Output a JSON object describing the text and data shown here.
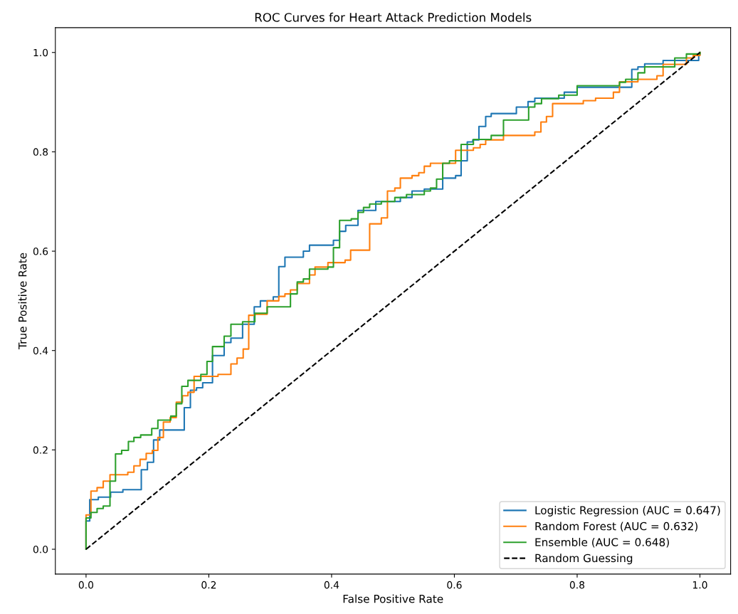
{
  "chart_data": {
    "type": "step",
    "title": "ROC Curves for Heart Attack Prediction Models",
    "xlabel": "False Positive Rate",
    "ylabel": "True Positive Rate",
    "xlim": [
      -0.05,
      1.05
    ],
    "ylim": [
      -0.05,
      1.05
    ],
    "xticks": [
      {
        "value": 0,
        "label": "0.0"
      },
      {
        "value": 0.2,
        "label": "0.2"
      },
      {
        "value": 0.4,
        "label": "0.4"
      },
      {
        "value": 0.6,
        "label": "0.6"
      },
      {
        "value": 0.8,
        "label": "0.8"
      },
      {
        "value": 1,
        "label": "1.0"
      }
    ],
    "yticks": [
      {
        "value": 0,
        "label": "0.0"
      },
      {
        "value": 0.2,
        "label": "0.2"
      },
      {
        "value": 0.4,
        "label": "0.4"
      },
      {
        "value": 0.6,
        "label": "0.6"
      },
      {
        "value": 0.8,
        "label": "0.8"
      },
      {
        "value": 1,
        "label": "1.0"
      }
    ],
    "grid": false,
    "legend": "bottom right",
    "marker": "none",
    "series": [
      {
        "name": "Logistic Regression (AUC = 0.647)",
        "color": "#1f77b4",
        "x": [
          0,
          0,
          0.006,
          0.02,
          0.04,
          0.06,
          0.09,
          0.1,
          0.11,
          0.12,
          0.16,
          0.17,
          0.18,
          0.19,
          0.206,
          0.225,
          0.236,
          0.255,
          0.274,
          0.284,
          0.305,
          0.314,
          0.324,
          0.354,
          0.364,
          0.403,
          0.413,
          0.423,
          0.443,
          0.472,
          0.512,
          0.531,
          0.551,
          0.581,
          0.602,
          0.611,
          0.621,
          0.63,
          0.64,
          0.651,
          0.66,
          0.701,
          0.72,
          0.731,
          0.779,
          0.8,
          0.889,
          0.899,
          0.91,
          0.94,
          0.998,
          1
        ],
        "values": [
          0,
          0.057,
          0.1,
          0.105,
          0.115,
          0.12,
          0.16,
          0.175,
          0.22,
          0.24,
          0.285,
          0.32,
          0.325,
          0.335,
          0.39,
          0.416,
          0.425,
          0.453,
          0.488,
          0.5,
          0.508,
          0.569,
          0.588,
          0.6,
          0.612,
          0.622,
          0.64,
          0.652,
          0.682,
          0.7,
          0.708,
          0.721,
          0.725,
          0.747,
          0.752,
          0.782,
          0.82,
          0.824,
          0.851,
          0.871,
          0.877,
          0.89,
          0.901,
          0.908,
          0.92,
          0.93,
          0.966,
          0.971,
          0.977,
          0.984,
          0.995,
          1
        ]
      },
      {
        "name": "Random Forest (AUC = 0.632)",
        "color": "#ff7f0e",
        "x": [
          0,
          0,
          0.008,
          0.018,
          0.028,
          0.039,
          0.068,
          0.078,
          0.088,
          0.098,
          0.108,
          0.117,
          0.126,
          0.137,
          0.147,
          0.157,
          0.166,
          0.176,
          0.215,
          0.236,
          0.246,
          0.256,
          0.265,
          0.275,
          0.295,
          0.314,
          0.324,
          0.333,
          0.344,
          0.364,
          0.373,
          0.394,
          0.422,
          0.431,
          0.462,
          0.481,
          0.491,
          0.503,
          0.512,
          0.531,
          0.542,
          0.551,
          0.561,
          0.602,
          0.631,
          0.642,
          0.651,
          0.68,
          0.731,
          0.741,
          0.75,
          0.76,
          0.81,
          0.83,
          0.859,
          0.869,
          0.899,
          0.93,
          0.94,
          0.978,
          0.989,
          1
        ],
        "values": [
          0,
          0.069,
          0.117,
          0.124,
          0.137,
          0.15,
          0.155,
          0.168,
          0.181,
          0.193,
          0.199,
          0.225,
          0.256,
          0.265,
          0.296,
          0.309,
          0.316,
          0.348,
          0.352,
          0.373,
          0.385,
          0.403,
          0.471,
          0.473,
          0.5,
          0.509,
          0.514,
          0.522,
          0.535,
          0.552,
          0.568,
          0.577,
          0.582,
          0.602,
          0.655,
          0.667,
          0.721,
          0.727,
          0.747,
          0.752,
          0.758,
          0.771,
          0.777,
          0.803,
          0.808,
          0.815,
          0.824,
          0.833,
          0.84,
          0.86,
          0.871,
          0.897,
          0.903,
          0.908,
          0.92,
          0.941,
          0.946,
          0.953,
          0.976,
          0.989,
          0.994,
          1
        ]
      },
      {
        "name": "Ensemble (AUC = 0.648)",
        "color": "#2ca02c",
        "x": [
          0,
          0,
          0.008,
          0.018,
          0.028,
          0.039,
          0.048,
          0.058,
          0.069,
          0.078,
          0.089,
          0.107,
          0.117,
          0.138,
          0.147,
          0.156,
          0.166,
          0.187,
          0.197,
          0.206,
          0.225,
          0.236,
          0.255,
          0.275,
          0.295,
          0.333,
          0.344,
          0.354,
          0.364,
          0.394,
          0.403,
          0.413,
          0.432,
          0.443,
          0.452,
          0.462,
          0.481,
          0.503,
          0.522,
          0.551,
          0.561,
          0.571,
          0.581,
          0.592,
          0.611,
          0.631,
          0.66,
          0.68,
          0.721,
          0.731,
          0.742,
          0.77,
          0.8,
          0.869,
          0.879,
          0.899,
          0.91,
          0.959,
          0.978,
          1
        ],
        "values": [
          0,
          0.063,
          0.074,
          0.082,
          0.087,
          0.137,
          0.192,
          0.199,
          0.217,
          0.225,
          0.23,
          0.243,
          0.26,
          0.268,
          0.293,
          0.328,
          0.34,
          0.352,
          0.378,
          0.408,
          0.429,
          0.453,
          0.458,
          0.475,
          0.488,
          0.514,
          0.538,
          0.544,
          0.564,
          0.568,
          0.607,
          0.662,
          0.665,
          0.678,
          0.688,
          0.695,
          0.7,
          0.708,
          0.714,
          0.721,
          0.727,
          0.745,
          0.777,
          0.782,
          0.815,
          0.825,
          0.833,
          0.864,
          0.89,
          0.897,
          0.907,
          0.914,
          0.933,
          0.94,
          0.946,
          0.959,
          0.971,
          0.989,
          0.997,
          1
        ]
      },
      {
        "name": "Random Guessing",
        "color": "#000000",
        "type": "line",
        "line_style": "dashed",
        "x": [
          0,
          1
        ],
        "values": [
          0,
          1
        ]
      }
    ]
  }
}
